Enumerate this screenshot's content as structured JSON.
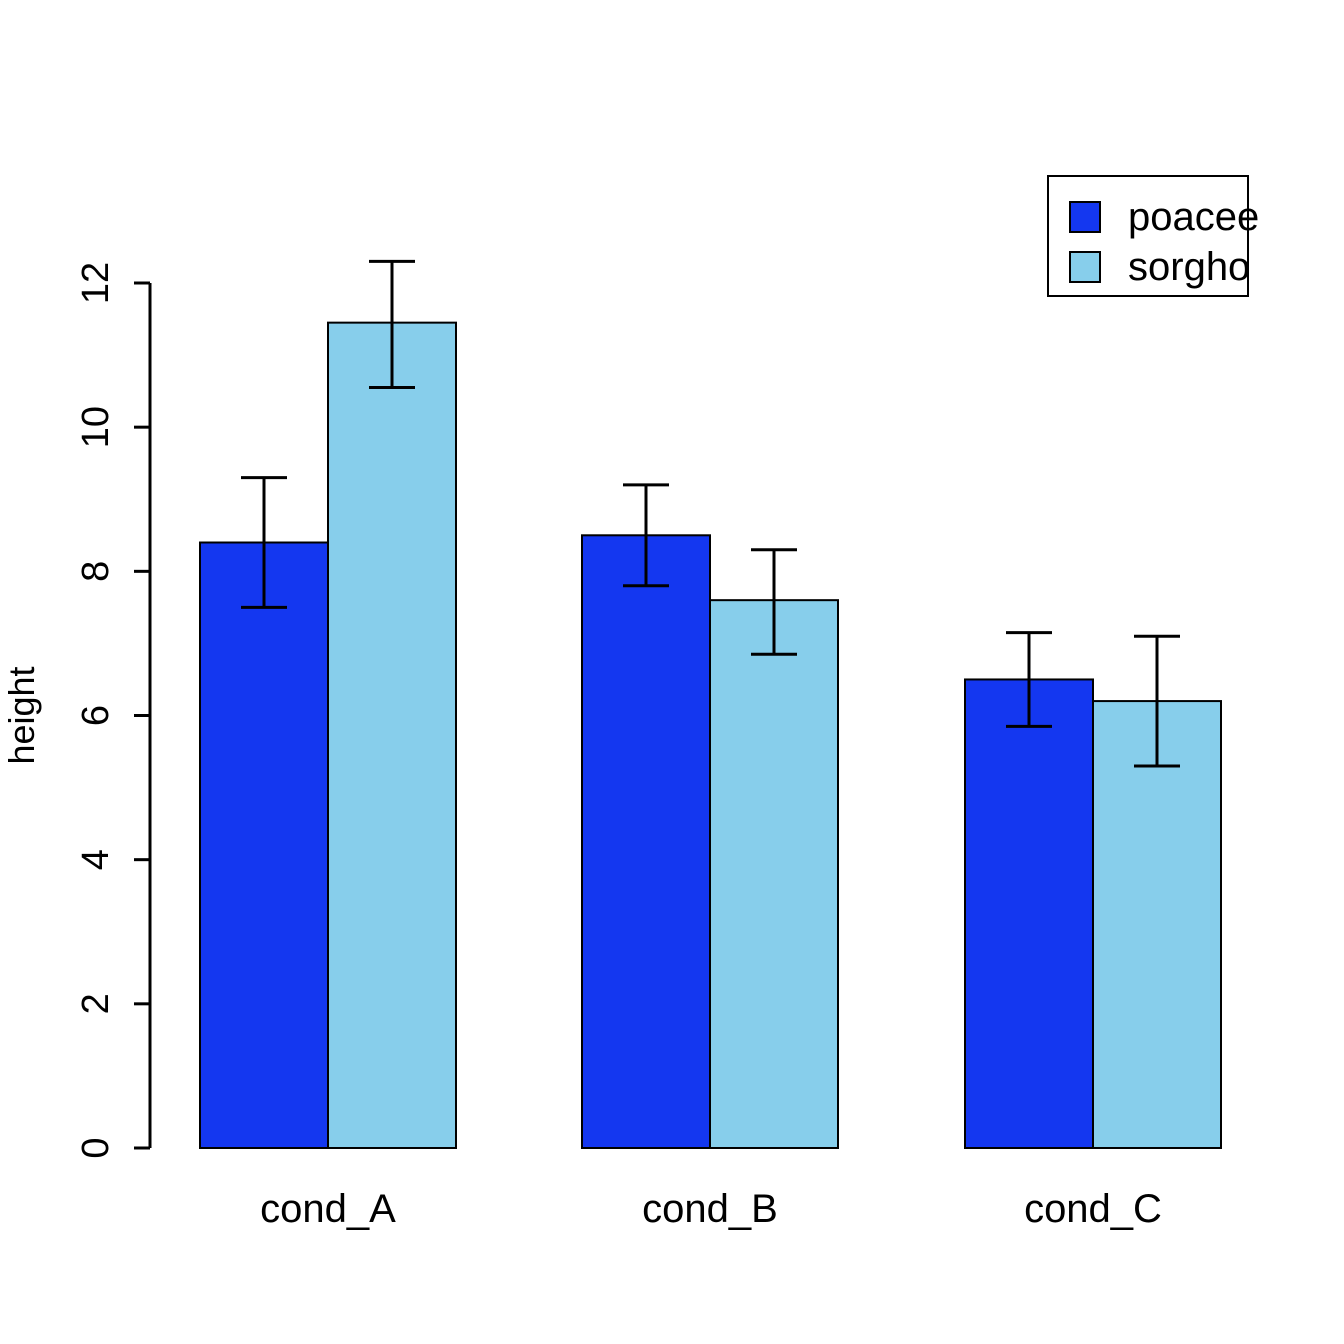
{
  "chart_data": {
    "type": "bar",
    "title": "",
    "xlabel": "",
    "ylabel": "height",
    "categories": [
      "cond_A",
      "cond_B",
      "cond_C"
    ],
    "series": [
      {
        "name": "poacee",
        "color": "#1437F0",
        "values": [
          8.4,
          8.5,
          6.5
        ],
        "error_low": [
          7.5,
          7.8,
          5.85
        ],
        "error_high": [
          9.3,
          9.2,
          7.15
        ]
      },
      {
        "name": "sorgho",
        "color": "#87CEEB",
        "values": [
          11.45,
          7.6,
          6.2
        ],
        "error_low": [
          10.55,
          6.85,
          5.3
        ],
        "error_high": [
          12.3,
          8.3,
          7.1
        ]
      }
    ],
    "ylim": [
      0,
      12
    ],
    "yticks": [
      0,
      2,
      4,
      6,
      8,
      10,
      12
    ],
    "grid": false,
    "legend_position": "top-right",
    "axis_color": "#000000",
    "bar_border_color": "#000000",
    "error_bar_color": "#000000",
    "background_color": "#ffffff"
  }
}
